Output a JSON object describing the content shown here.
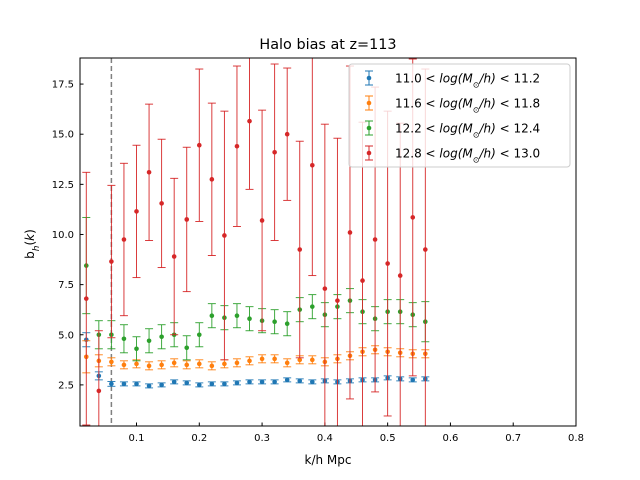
{
  "chart_data": {
    "type": "scatter",
    "title": "Halo bias at z=113",
    "xlabel": "k/h Mpc",
    "ylabel": "b_h(k)",
    "xlim": [
      0.01,
      0.8
    ],
    "ylim": [
      0.45,
      18.8
    ],
    "xticks": [
      0.1,
      0.2,
      0.3,
      0.4,
      0.5,
      0.6,
      0.7,
      0.8
    ],
    "xtick_labels": [
      "0.1",
      "0.2",
      "0.3",
      "0.4",
      "0.5",
      "0.6",
      "0.7",
      "0.8"
    ],
    "yticks": [
      2.5,
      5.0,
      7.5,
      10.0,
      12.5,
      15.0,
      17.5
    ],
    "ytick_labels": [
      "2.5",
      "5.0",
      "7.5",
      "10.0",
      "12.5",
      "15.0",
      "17.5"
    ],
    "vline": {
      "x": 0.06,
      "color": "#808080",
      "style": "dashed"
    },
    "legend_position": "upper right",
    "x": [
      0.02,
      0.04,
      0.06,
      0.08,
      0.1,
      0.12,
      0.14,
      0.16,
      0.18,
      0.2,
      0.22,
      0.24,
      0.26,
      0.28,
      0.3,
      0.32,
      0.34,
      0.36,
      0.38,
      0.4,
      0.42,
      0.44,
      0.46,
      0.48,
      0.5,
      0.52,
      0.54,
      0.56
    ],
    "series": [
      {
        "name": "11.0 < log(M☉/h) < 11.2",
        "color": "#1f77b4",
        "values": [
          4.75,
          2.95,
          2.55,
          2.55,
          2.55,
          2.45,
          2.5,
          2.65,
          2.6,
          2.5,
          2.55,
          2.55,
          2.6,
          2.65,
          2.65,
          2.65,
          2.75,
          2.7,
          2.65,
          2.7,
          2.65,
          2.7,
          2.75,
          2.75,
          2.85,
          2.8,
          2.75,
          2.8
        ],
        "errors": [
          0.35,
          0.2,
          0.12,
          0.1,
          0.1,
          0.1,
          0.1,
          0.1,
          0.1,
          0.1,
          0.1,
          0.1,
          0.1,
          0.1,
          0.1,
          0.1,
          0.1,
          0.1,
          0.1,
          0.1,
          0.1,
          0.1,
          0.1,
          0.1,
          0.1,
          0.1,
          0.1,
          0.1
        ]
      },
      {
        "name": "11.6 < log(M☉/h) < 11.8",
        "color": "#ff7f0e",
        "values": [
          3.9,
          3.7,
          3.65,
          3.5,
          3.55,
          3.45,
          3.5,
          3.6,
          3.5,
          3.55,
          3.45,
          3.55,
          3.6,
          3.7,
          3.8,
          3.8,
          3.6,
          3.75,
          3.75,
          3.65,
          3.8,
          3.95,
          4.15,
          4.25,
          4.15,
          4.1,
          4.05,
          4.05
        ],
        "errors": [
          0.8,
          0.3,
          0.2,
          0.2,
          0.2,
          0.2,
          0.2,
          0.2,
          0.2,
          0.2,
          0.2,
          0.2,
          0.2,
          0.2,
          0.2,
          0.2,
          0.2,
          0.2,
          0.2,
          0.2,
          0.2,
          0.2,
          0.2,
          0.2,
          0.2,
          0.2,
          0.2,
          0.2
        ]
      },
      {
        "name": "12.2 < log(M☉/h) < 12.4",
        "color": "#2ca02c",
        "values": [
          8.45,
          5.0,
          5.0,
          4.8,
          4.3,
          4.7,
          4.9,
          5.0,
          4.35,
          5.0,
          5.95,
          5.85,
          5.95,
          5.8,
          5.7,
          5.65,
          5.55,
          6.25,
          6.4,
          6.0,
          6.4,
          6.7,
          6.15,
          5.8,
          6.15,
          6.15,
          6.0,
          5.65
        ],
        "errors": [
          2.4,
          0.7,
          0.7,
          0.7,
          0.6,
          0.6,
          0.6,
          0.6,
          0.6,
          0.6,
          0.6,
          0.6,
          0.6,
          0.6,
          0.6,
          0.6,
          0.6,
          0.6,
          0.6,
          0.6,
          0.6,
          0.6,
          0.6,
          0.6,
          0.6,
          0.6,
          0.6,
          1.0
        ]
      },
      {
        "name": "12.8 < log(M☉/h) < 13.0",
        "color": "#d62728",
        "values": [
          6.8,
          2.2,
          8.65,
          9.75,
          11.15,
          13.1,
          11.55,
          8.9,
          10.75,
          14.45,
          12.75,
          9.95,
          14.4,
          15.65,
          10.7,
          14.1,
          15.0,
          9.25,
          13.45,
          7.3,
          6.7,
          10.1,
          7.7,
          9.75,
          8.55,
          7.95,
          10.85,
          9.25
        ],
        "errors": [
          6.3,
          3.0,
          3.8,
          3.8,
          3.3,
          3.4,
          3.2,
          3.9,
          3.6,
          3.8,
          3.8,
          6.2,
          4.0,
          3.4,
          5.5,
          4.4,
          3.3,
          5.4,
          5.5,
          8.2,
          8.1,
          8.3,
          7.9,
          7.6,
          7.6,
          7.6,
          7.9,
          9.0
        ]
      }
    ]
  },
  "legend": [
    {
      "lo": "11.0",
      "hi": "11.2"
    },
    {
      "lo": "11.6",
      "hi": "11.8"
    },
    {
      "lo": "12.2",
      "hi": "12.4"
    },
    {
      "lo": "12.8",
      "hi": "13.0"
    }
  ]
}
